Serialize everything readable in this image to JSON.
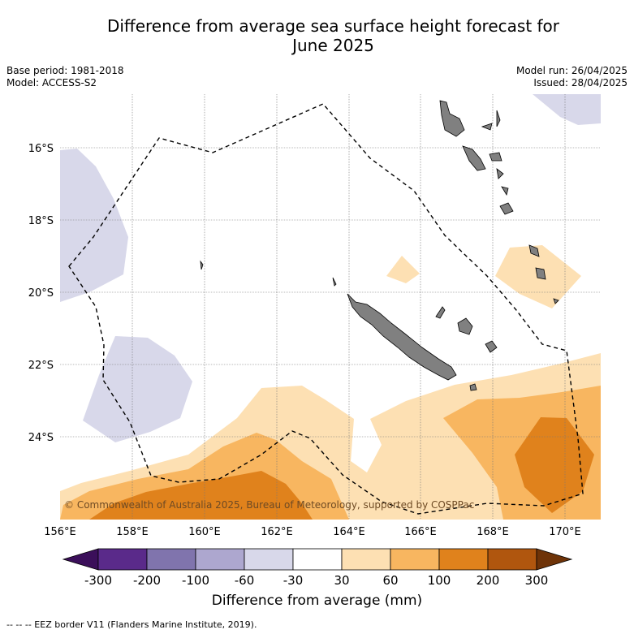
{
  "title": "Difference from average sea surface height forecast for June 2025",
  "title_line1": "Difference from average sea surface height forecast for",
  "title_line2": "June 2025",
  "base_period": "Base period: 1981-2018",
  "model": "Model: ACCESS-S2",
  "model_run": "Model run: 26/04/2025",
  "issued": "Issued: 28/04/2025",
  "copyright": "© Commonwealth of Australia 2025, Bureau of Meteorology, supported by COSPPac",
  "eez_note": "--  --  -- EEZ border V11 (Flanders Marine Institute, 2019).",
  "map": {
    "lon_range": [
      156,
      171
    ],
    "lat_range": [
      -26.3,
      -14.3
    ],
    "lat_ticks": [
      "16°S",
      "18°S",
      "20°S",
      "22°S",
      "24°S"
    ],
    "lon_ticks": [
      "156°E",
      "158°E",
      "160°E",
      "162°E",
      "164°E",
      "166°E",
      "168°E",
      "170°E"
    ],
    "grid": true,
    "features": {
      "land": "New Caledonia, Loyalty Islands, Vanuatu",
      "eez_border": "dashed"
    }
  },
  "colorbar": {
    "title": "Difference from average (mm)",
    "ticks": [
      "-300",
      "-200",
      "-100",
      "-60",
      "-30",
      "30",
      "60",
      "100",
      "200",
      "300"
    ],
    "colors": [
      "#3b0f5a",
      "#5a2a8a",
      "#8074ad",
      "#ada7cf",
      "#d8d8ea",
      "#ffffff",
      "#fde0b3",
      "#f8b660",
      "#e0821c",
      "#b0560e",
      "#6e3308"
    ]
  }
}
